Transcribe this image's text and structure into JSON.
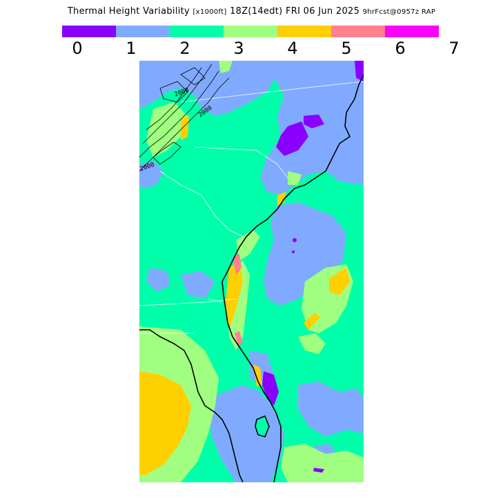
{
  "header": {
    "title": "Thermal Height Variability",
    "units": "[x1000ft]",
    "valid_time": "18Z(14edt) FRI 06 Jun 2025",
    "forecast": "9hrFcst@0957z RAP"
  },
  "legend": {
    "colors": [
      "#8a00ff",
      "#80aaff",
      "#00ffaa",
      "#a0ff80",
      "#ffd000",
      "#ff8090",
      "#ff00ff"
    ],
    "ticks": [
      "0",
      "1",
      "2",
      "3",
      "4",
      "5",
      "6",
      "7"
    ]
  },
  "map": {
    "contour_labels": [
      "2000",
      "2000",
      "2000"
    ]
  }
}
